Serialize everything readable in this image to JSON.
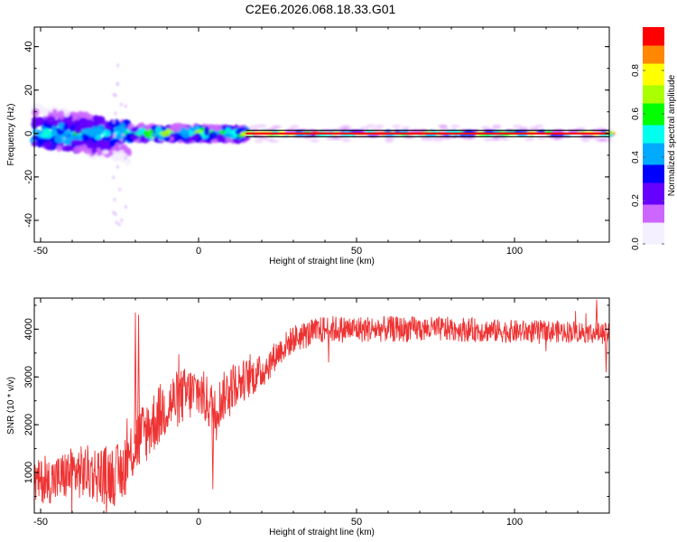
{
  "title": "C2E6.2026.068.18.33.G01",
  "chart_data": [
    {
      "type": "heatmap",
      "title": "C2E6.2026.068.18.33.G01",
      "xlabel": "Height of straight line (km)",
      "ylabel": "Frequency (Hz)",
      "xlim": [
        -52,
        130
      ],
      "ylim": [
        -50,
        49
      ],
      "xticks": [
        -50,
        0,
        50,
        100
      ],
      "yticks": [
        -40,
        -20,
        0,
        20,
        40
      ],
      "colorbar": {
        "label": "Normalized spectral amplitude",
        "range": [
          0,
          1
        ],
        "ticks": [
          "0.0",
          "0.2",
          "0.4",
          "0.6",
          "0.8"
        ],
        "colors": [
          "#f4f0ff",
          "#cc66ff",
          "#6600ff",
          "#0000ff",
          "#00aaff",
          "#00ffee",
          "#00ff00",
          "#aaff00",
          "#ffff00",
          "#ff8800",
          "#ff0000",
          "#ff0066"
        ]
      },
      "dominant_frequency_hz": 0,
      "segments": [
        {
          "x_range": [
            -52,
            -22
          ],
          "frequency_spread_hz": [
            -10,
            10
          ],
          "peak_amplitude": 0.55
        },
        {
          "x_range": [
            -22,
            15
          ],
          "frequency_spread_hz": [
            -3,
            3
          ],
          "peak_amplitude": 0.8
        },
        {
          "x_range": [
            15,
            130
          ],
          "frequency_spread_hz": [
            -1,
            1
          ],
          "peak_amplitude": 0.95
        }
      ]
    },
    {
      "type": "line",
      "xlabel": "Height of straight line (km)",
      "ylabel": "SNR (10 * v/v)",
      "xlim": [
        -52,
        130
      ],
      "ylim": [
        150,
        4650
      ],
      "xticks": [
        -50,
        0,
        50,
        100
      ],
      "yticks": [
        1000,
        2000,
        3000,
        4000
      ],
      "color": "#ee3333",
      "trend": [
        {
          "x": -52,
          "y": 800
        },
        {
          "x": -45,
          "y": 850
        },
        {
          "x": -40,
          "y": 1000
        },
        {
          "x": -35,
          "y": 1000
        },
        {
          "x": -30,
          "y": 950
        },
        {
          "x": -25,
          "y": 950
        },
        {
          "x": -20,
          "y": 1600
        },
        {
          "x": -15,
          "y": 2000
        },
        {
          "x": -10,
          "y": 2400
        },
        {
          "x": -5,
          "y": 2600
        },
        {
          "x": 0,
          "y": 2700
        },
        {
          "x": 5,
          "y": 2300
        },
        {
          "x": 10,
          "y": 2800
        },
        {
          "x": 15,
          "y": 2950
        },
        {
          "x": 20,
          "y": 3100
        },
        {
          "x": 25,
          "y": 3500
        },
        {
          "x": 30,
          "y": 3800
        },
        {
          "x": 40,
          "y": 4000
        },
        {
          "x": 60,
          "y": 4000
        },
        {
          "x": 80,
          "y": 4000
        },
        {
          "x": 100,
          "y": 3950
        },
        {
          "x": 120,
          "y": 3950
        },
        {
          "x": 130,
          "y": 3900
        }
      ],
      "noise_amplitude": [
        {
          "x": -52,
          "a": 450
        },
        {
          "x": -20,
          "a": 700
        },
        {
          "x": 10,
          "a": 500
        },
        {
          "x": 25,
          "a": 300
        },
        {
          "x": 130,
          "a": 220
        }
      ],
      "spikes": [
        {
          "x": -20,
          "y": 4350
        },
        {
          "x": -19,
          "y": 4300
        },
        {
          "x": 4.5,
          "y": 650
        },
        {
          "x": 126,
          "y": 4620
        },
        {
          "x": 129,
          "y": 3100
        }
      ]
    }
  ]
}
